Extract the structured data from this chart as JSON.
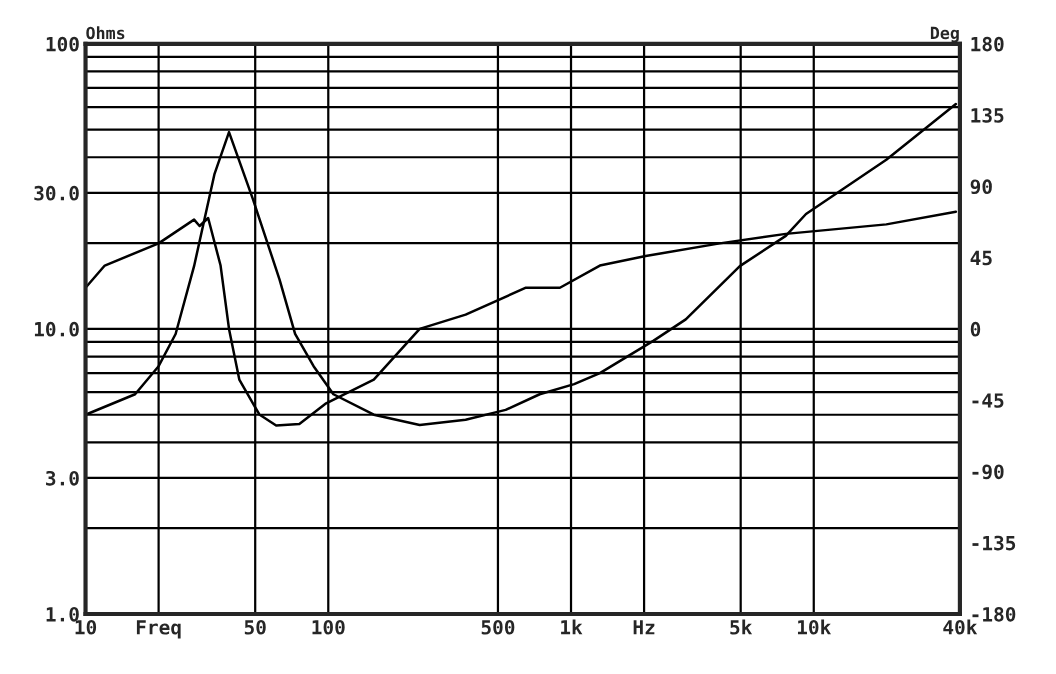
{
  "chart_data": {
    "type": "line",
    "ylabel": "Ohms",
    "y2label": "Deg",
    "log": "xy",
    "grid": true,
    "marker": "none",
    "line_style": "solid",
    "xlim": [
      10,
      40000
    ],
    "xticks": [
      10,
      {
        "value": 20,
        "label": "Freq"
      },
      50,
      100,
      500,
      {
        "value": 1000,
        "label": "1k"
      },
      {
        "value": 2000,
        "label": "Hz"
      },
      {
        "value": 5000,
        "label": "5k"
      },
      {
        "value": 10000,
        "label": "10k"
      },
      {
        "value": 40000,
        "label": "40k"
      }
    ],
    "ylim": [
      1,
      100
    ],
    "yticks": [
      {
        "value": 1,
        "label": "1.0"
      },
      {
        "value": 3,
        "label": "3.0"
      },
      {
        "value": 10,
        "label": "10.0"
      },
      {
        "value": 30,
        "label": "30.0"
      },
      100
    ],
    "y2lim": [
      -180,
      180
    ],
    "y2ticks": [
      -180,
      -135,
      -90,
      -45,
      0,
      45,
      90,
      135,
      180
    ],
    "series": [
      {
        "color": "#000000",
        "x": [
          10,
          16,
          20,
          23.5,
          28,
          34,
          39,
          49,
          63,
          73,
          87,
          105,
          154,
          238,
          368,
          538,
          743,
          1030,
          1315,
          2190,
          2970,
          4960,
          7670,
          9290,
          19900,
          38500
        ],
        "values": [
          5.0,
          5.9,
          7.4,
          9.6,
          16.6,
          35,
          49,
          28.4,
          14.9,
          9.6,
          7.4,
          5.9,
          5.0,
          4.6,
          4.8,
          5.2,
          5.9,
          6.4,
          7.0,
          9.1,
          10.8,
          16.6,
          21.2,
          25.3,
          39.2,
          61.5
        ]
      },
      {
        "color": "#000000",
        "axis": "y2",
        "x": [
          10,
          12,
          20,
          28,
          29.5,
          32,
          36,
          39,
          43,
          52,
          61,
          76,
          98,
          154,
          238,
          368,
          652,
          900,
          1315,
          2030,
          4100,
          7670,
          19900,
          38500
        ],
        "values": [
          26,
          40,
          54,
          69,
          65,
          70,
          40,
          0,
          -32,
          -54,
          -61,
          -60,
          -47,
          -32,
          0,
          9,
          26,
          26,
          40,
          46,
          54,
          60,
          66,
          74
        ]
      }
    ]
  }
}
